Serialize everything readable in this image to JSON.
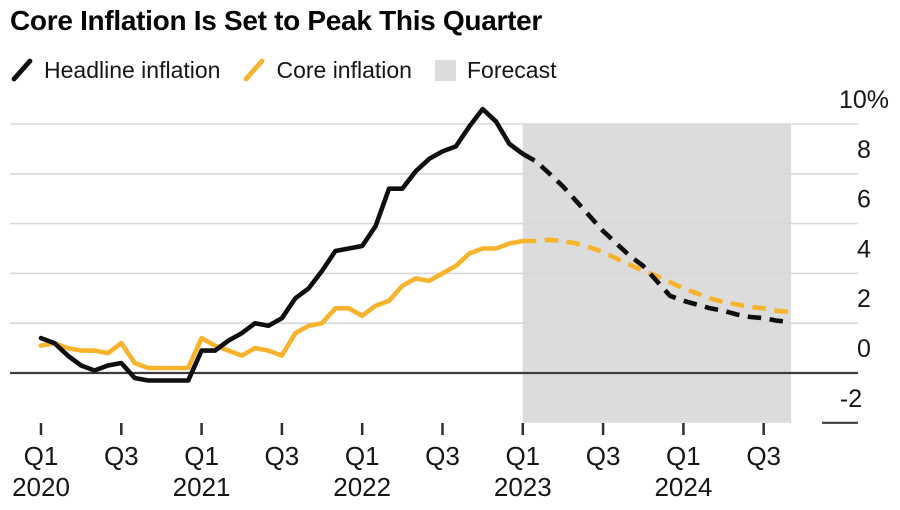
{
  "title": "Core Inflation Is Set to Peak This Quarter",
  "legend": [
    {
      "key": "headline",
      "label": "Headline inflation",
      "icon": "line-swatch",
      "color": "#0f0f0f"
    },
    {
      "key": "core",
      "label": "Core inflation",
      "icon": "line-swatch",
      "color": "#f7b32c"
    },
    {
      "key": "forecast",
      "label": "Forecast",
      "icon": "square-swatch",
      "color": "#dcdcdd"
    }
  ],
  "chart_data": {
    "type": "line",
    "title": "Core Inflation Is Set to Peak This Quarter",
    "grid_color": "#d8d8d8",
    "zero_line_color": "#3c3c3c",
    "tick_color": "#2e2e2e",
    "text_color": "#161616",
    "y_axis": {
      "unit": "%",
      "range": [
        -2,
        10
      ],
      "ticks": [
        {
          "value": 10,
          "label": "10%"
        },
        {
          "value": 8,
          "label": "8"
        },
        {
          "value": 6,
          "label": "6"
        },
        {
          "value": 4,
          "label": "4"
        },
        {
          "value": 2,
          "label": "2"
        },
        {
          "value": 0,
          "label": "0"
        },
        {
          "value": -2,
          "label": "-2"
        }
      ]
    },
    "x_axis": {
      "start": "2020-01",
      "end": "2024-09",
      "unit": "month",
      "ticks": [
        {
          "month": 0,
          "label": "Q1",
          "year": "2020"
        },
        {
          "month": 6,
          "label": "Q3"
        },
        {
          "month": 12,
          "label": "Q1",
          "year": "2021"
        },
        {
          "month": 18,
          "label": "Q3"
        },
        {
          "month": 24,
          "label": "Q1",
          "year": "2022"
        },
        {
          "month": 30,
          "label": "Q3"
        },
        {
          "month": 36,
          "label": "Q1",
          "year": "2023"
        },
        {
          "month": 42,
          "label": "Q3"
        },
        {
          "month": 48,
          "label": "Q1",
          "year": "2024"
        },
        {
          "month": 54,
          "label": "Q3"
        }
      ]
    },
    "forecast_region": {
      "label": "Forecast",
      "start_month": 36,
      "end_month": 56.05,
      "color": "#dcdcdd"
    },
    "series": [
      {
        "key": "core",
        "name": "Core inflation",
        "color": "#f7b32c",
        "history_start_month": 0,
        "history": [
          1.1,
          1.2,
          1.0,
          0.9,
          0.9,
          0.8,
          1.2,
          0.4,
          0.2,
          0.2,
          0.2,
          0.2,
          1.4,
          1.1,
          0.9,
          0.7,
          1.0,
          0.9,
          0.7,
          1.6,
          1.9,
          2.0,
          2.6,
          2.6,
          2.3,
          2.7,
          2.9,
          3.5,
          3.8,
          3.7,
          4.0,
          4.3,
          4.8,
          5.0,
          5.0,
          5.2,
          5.3
        ],
        "forecast_start_month": 36,
        "forecast": [
          5.3,
          5.3,
          5.35,
          5.3,
          5.2,
          5.05,
          4.85,
          4.6,
          4.35,
          4.1,
          3.9,
          3.65,
          3.4,
          3.2,
          3.0,
          2.85,
          2.75,
          2.65,
          2.6,
          2.5,
          2.45
        ]
      },
      {
        "key": "headline",
        "name": "Headline inflation",
        "color": "#0f0f0f",
        "history_start_month": 0,
        "history": [
          1.4,
          1.2,
          0.7,
          0.3,
          0.1,
          0.3,
          0.4,
          -0.2,
          -0.3,
          -0.3,
          -0.3,
          -0.3,
          0.9,
          0.9,
          1.3,
          1.6,
          2.0,
          1.9,
          2.2,
          3.0,
          3.4,
          4.1,
          4.9,
          5.0,
          5.1,
          5.9,
          7.4,
          7.4,
          8.1,
          8.6,
          8.9,
          9.1,
          9.9,
          10.6,
          10.1,
          9.2,
          8.8
        ],
        "forecast_start_month": 36,
        "forecast": [
          8.8,
          8.5,
          8.0,
          7.5,
          6.9,
          6.3,
          5.7,
          5.2,
          4.7,
          4.3,
          3.7,
          3.1,
          2.9,
          2.75,
          2.6,
          2.5,
          2.35,
          2.25,
          2.2,
          2.1,
          2.05
        ]
      }
    ]
  }
}
